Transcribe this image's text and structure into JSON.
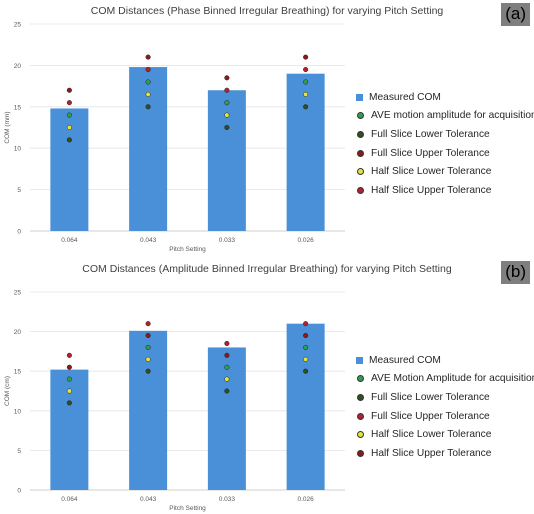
{
  "panels": [
    {
      "label": "(a)",
      "chart_data": {
        "type": "bar",
        "title": "COM Distances (Phase Binned Irregular Breathing) for varying Pitch Setting",
        "xlabel": "Pitch Setting",
        "ylabel": "COM (mm)",
        "ylim": [
          0,
          25
        ],
        "yticks": [
          0,
          5,
          10,
          15,
          20,
          25
        ],
        "categories": [
          "0.064",
          "0.043",
          "0.033",
          "0.026"
        ],
        "series": [
          {
            "name": "Measured  COM",
            "kind": "bar",
            "color": "#4a90d9",
            "values": [
              14.8,
              19.8,
              17.0,
              19.0
            ]
          },
          {
            "name": "AVE motion amplitude for acquisition",
            "kind": "marker",
            "color": "#2e9e4f",
            "values": [
              14.0,
              18.0,
              15.5,
              18.0
            ]
          },
          {
            "name": "Full Slice Lower Tolerance",
            "kind": "marker",
            "color": "#2f4f1f",
            "values": [
              11.0,
              15.0,
              12.5,
              15.0
            ]
          },
          {
            "name": "Full Slice Upper Tolerance",
            "kind": "marker",
            "color": "#8b1a1a",
            "values": [
              17.0,
              21.0,
              18.5,
              21.0
            ]
          },
          {
            "name": "Half Slice Lower Tolerance",
            "kind": "marker",
            "color": "#e3e33b",
            "values": [
              12.5,
              16.5,
              14.0,
              16.5
            ]
          },
          {
            "name": "Half Slice Upper Tolerance",
            "kind": "marker",
            "color": "#b0232a",
            "values": [
              15.5,
              19.5,
              17.0,
              19.5
            ]
          }
        ],
        "legend_position": "right"
      }
    },
    {
      "label": "(b)",
      "chart_data": {
        "type": "bar",
        "title": "COM Distances (Amplitude Binned Irregular Breathing) for varying Pitch Setting",
        "xlabel": "Pitch Setting",
        "ylabel": "COM (cm)",
        "ylim": [
          0,
          25
        ],
        "yticks": [
          0,
          5,
          10,
          15,
          20,
          25
        ],
        "categories": [
          "0.064",
          "0.043",
          "0.033",
          "0.026"
        ],
        "series": [
          {
            "name": "Measured  COM",
            "kind": "bar",
            "color": "#4a90d9",
            "values": [
              15.2,
              20.1,
              18.0,
              21.0
            ]
          },
          {
            "name": "AVE Motion Amplitude for acquisition",
            "kind": "marker",
            "color": "#2e9e4f",
            "values": [
              14.0,
              18.0,
              15.5,
              18.0
            ]
          },
          {
            "name": "Full Slice Lower Tolerance",
            "kind": "marker",
            "color": "#2f4f1f",
            "values": [
              11.0,
              15.0,
              12.5,
              15.0
            ]
          },
          {
            "name": "Full Slice Upper Tolerance",
            "kind": "marker",
            "color": "#b0232a",
            "values": [
              17.0,
              21.0,
              18.5,
              21.0
            ]
          },
          {
            "name": "Half Slice Lower Tolerance",
            "kind": "marker",
            "color": "#e3e33b",
            "values": [
              12.5,
              16.5,
              14.0,
              16.5
            ]
          },
          {
            "name": "Half Slice Upper Tolerance",
            "kind": "marker",
            "color": "#8b1a1a",
            "values": [
              15.5,
              19.5,
              17.0,
              19.5
            ]
          }
        ],
        "legend_position": "right"
      }
    }
  ]
}
